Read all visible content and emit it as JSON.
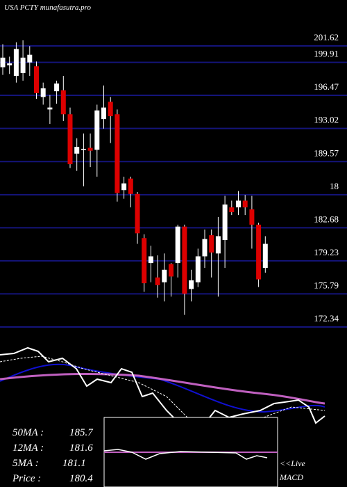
{
  "chart_data": {
    "type": "candlestick",
    "title": "USA PCTY munafasutra.pro",
    "ylim": [
      172.34,
      201.62
    ],
    "yticks": [
      201.62,
      199.91,
      196.47,
      193.02,
      189.57,
      {
        "value": 186.12,
        "label": "18"
      },
      182.68,
      179.23,
      175.79,
      172.34
    ],
    "grid": true,
    "grid_color": "#14147a",
    "up_color": "#ffffff",
    "down_color": "#dd0000",
    "open": [
      199.4,
      199.6,
      198.5,
      198.8,
      199.9,
      199.5,
      196.3,
      195.0,
      196.9,
      197.0,
      194.5,
      190.4,
      190.8,
      191.0,
      190.8,
      194.0,
      195.8,
      194.5,
      186.6,
      187.8,
      186.2,
      181.6,
      179.0,
      177.5,
      177.0,
      178.9,
      179.0,
      182.8,
      176.3,
      177.0,
      179.7,
      181.9,
      180.0,
      181.4,
      184.8,
      184.8,
      185.5,
      184.6,
      183.0,
      178.5
    ],
    "high": [
      201.8,
      200.5,
      202.0,
      202.2,
      201.6,
      200.0,
      197.8,
      196.5,
      198.0,
      198.5,
      195.2,
      192.0,
      192.5,
      192.5,
      195.5,
      197.5,
      196.3,
      195.0,
      188.0,
      188.0,
      186.4,
      182.0,
      180.8,
      179.8,
      180.0,
      179.0,
      183.0,
      183.0,
      178.3,
      180.5,
      182.5,
      182.5,
      183.8,
      186.0,
      185.5,
      186.5,
      186.1,
      186.0,
      183.2,
      181.8
    ],
    "low": [
      198.6,
      198.7,
      197.8,
      198.0,
      198.5,
      196.1,
      195.5,
      193.5,
      195.6,
      193.8,
      188.9,
      188.6,
      187.0,
      189.0,
      188.0,
      193.0,
      191.5,
      185.4,
      185.7,
      184.8,
      181.0,
      176.0,
      177.0,
      175.4,
      175.0,
      175.5,
      177.5,
      173.6,
      175.0,
      176.5,
      178.5,
      177.5,
      175.5,
      178.5,
      184.0,
      184.0,
      184.0,
      180.5,
      176.5,
      178.0
    ],
    "close": [
      200.4,
      199.8,
      201.3,
      200.4,
      200.7,
      196.7,
      197.2,
      195.2,
      197.7,
      194.5,
      189.3,
      191.1,
      190.9,
      190.7,
      194.9,
      195.2,
      194.3,
      186.3,
      187.3,
      186.2,
      182.1,
      176.9,
      179.7,
      176.7,
      178.3,
      177.6,
      182.8,
      175.8,
      177.2,
      179.7,
      181.5,
      180.1,
      181.8,
      185.1,
      184.3,
      185.5,
      184.8,
      183.0,
      177.3,
      181.0
    ],
    "indicators": [
      {
        "label": "50MA :",
        "value": 185.7
      },
      {
        "label": "12MA :",
        "value": 181.6
      },
      {
        "label": "5MA :",
        "value": 181.1
      },
      {
        "label": "Price  :",
        "value": 180.4
      }
    ],
    "live_label": "<<Live",
    "macd_label": "MACD"
  }
}
